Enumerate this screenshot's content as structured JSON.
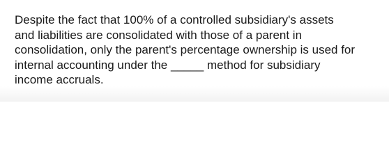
{
  "question": {
    "lines": [
      "Despite the fact that 100% of a controlled subsidiary's assets",
      "and liabilities are consolidated with those of a parent in",
      "consolidation, only the parent's percentage ownership is used for",
      "internal accounting under the _____ method for subsidiary",
      "income accruals."
    ]
  }
}
